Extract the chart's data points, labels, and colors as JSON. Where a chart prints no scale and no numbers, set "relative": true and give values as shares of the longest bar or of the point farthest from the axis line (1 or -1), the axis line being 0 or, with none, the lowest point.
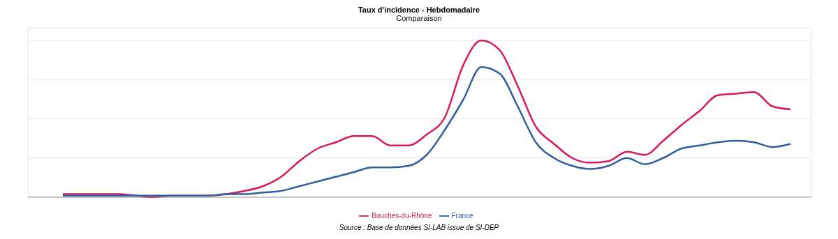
{
  "chart_data": {
    "type": "line",
    "title": "Taux d'incidence - Hebdomadaire",
    "subtitle": "Comparaison",
    "annotations": [
      "Source : Base de données SI-LAB issue de SI-DEP"
    ],
    "relative": true,
    "grid": true,
    "legend": "bottom",
    "marker": "none",
    "line_style": "solid",
    "tick_labels": false,
    "categories": [
      null,
      null,
      null,
      null,
      null,
      null,
      null,
      null,
      null,
      null,
      null,
      null,
      null,
      null,
      null,
      null,
      null,
      null,
      null,
      null,
      null,
      null,
      null,
      null,
      null,
      null,
      null,
      null,
      null,
      null,
      null,
      null,
      null,
      null,
      null,
      null,
      null,
      null,
      null,
      null,
      null
    ],
    "series": [
      {
        "name": "Bouches-du-Rhône",
        "color": "#d6195e",
        "values": [
          0.02,
          0.02,
          0.02,
          0.02,
          0.01,
          0.0,
          0.01,
          0.01,
          0.01,
          0.02,
          0.04,
          0.07,
          0.13,
          0.23,
          0.31,
          0.35,
          0.39,
          0.39,
          0.33,
          0.33,
          0.4,
          0.51,
          0.84,
          1,
          0.94,
          0.71,
          0.45,
          0.34,
          0.25,
          0.22,
          0.23,
          0.29,
          0.27,
          0.36,
          0.46,
          0.55,
          0.65,
          0.66,
          0.67,
          0.58,
          0.56
        ]
      },
      {
        "name": "France",
        "color": "#2e5e9e",
        "values": [
          0.01,
          0.01,
          0.01,
          0.01,
          0.01,
          0.01,
          0.01,
          0.01,
          0.01,
          0.02,
          0.02,
          0.03,
          0.04,
          0.07,
          0.1,
          0.13,
          0.16,
          0.19,
          0.19,
          0.2,
          0.27,
          0.43,
          0.62,
          0.83,
          0.79,
          0.58,
          0.35,
          0.25,
          0.2,
          0.18,
          0.2,
          0.25,
          0.21,
          0.25,
          0.31,
          0.33,
          0.35,
          0.36,
          0.35,
          0.32,
          0.34
        ]
      }
    ]
  }
}
